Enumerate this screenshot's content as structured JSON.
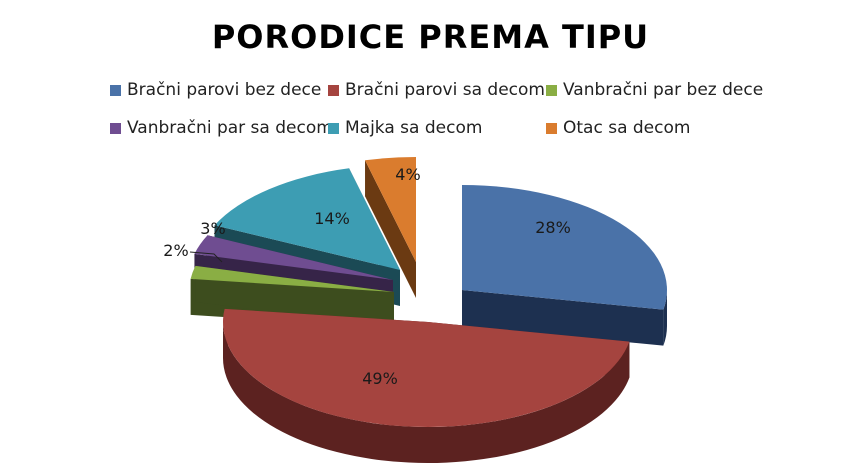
{
  "chart_data": {
    "type": "pie",
    "title": "PORODICE PREMA TIPU",
    "legend_position": "top",
    "style": "3d-exploded",
    "slices": [
      {
        "name": "Bračni parovi bez dece",
        "value": 28,
        "label": "28%",
        "color": "#4a72a8",
        "side_color": "#1d3050"
      },
      {
        "name": "Bračni parovi sa decom",
        "value": 49,
        "label": "49%",
        "color": "#a5443f",
        "side_color": "#5c2220"
      },
      {
        "name": "Vanbračni par bez dece",
        "value": 2,
        "label": "2%",
        "color": "#8aae44",
        "side_color": "#3d4d1e"
      },
      {
        "name": "Vanbračni par sa decom",
        "value": 3,
        "label": "3%",
        "color": "#6f4d91",
        "side_color": "#362448"
      },
      {
        "name": "Majka sa decom",
        "value": 14,
        "label": "14%",
        "color": "#3d9db3",
        "side_color": "#1b4a55"
      },
      {
        "name": "Otac sa decom",
        "value": 4,
        "label": "4%",
        "color": "#da7c2e",
        "side_color": "#6b3a12"
      }
    ]
  }
}
